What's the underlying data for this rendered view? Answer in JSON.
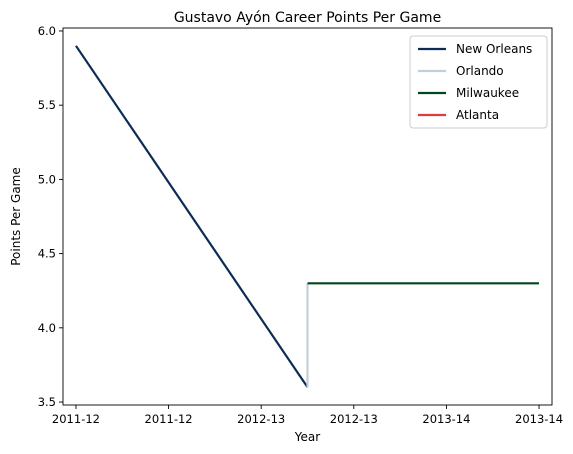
{
  "chart_data": {
    "type": "line",
    "title": "Gustavo Ayón Career Points Per Game",
    "xlabel": "Year",
    "ylabel": "Points Per Game",
    "x_tick_labels": [
      "2011-12",
      "2011-12",
      "2012-13",
      "2012-13",
      "2013-14",
      "2013-14"
    ],
    "x_tick_positions": [
      0,
      0.5,
      1,
      1.5,
      2,
      2.5
    ],
    "xlim": [
      -0.07,
      2.57
    ],
    "y_ticks": [
      3.5,
      4.0,
      4.5,
      5.0,
      5.5,
      6.0
    ],
    "y_tick_labels": [
      "3.5",
      "4.0",
      "4.5",
      "5.0",
      "5.5",
      "6.0"
    ],
    "ylim": [
      3.48,
      6.02
    ],
    "grid": false,
    "legend_position": "top-right",
    "series": [
      {
        "name": "New Orleans",
        "color": "#0C2C56",
        "x": [
          0,
          1.25
        ],
        "y": [
          5.9,
          3.6
        ]
      },
      {
        "name": "Orlando",
        "color": "#C4CED4",
        "x": [
          1.25,
          1.25
        ],
        "y": [
          3.6,
          4.3
        ]
      },
      {
        "name": "Milwaukee",
        "color": "#00471B",
        "x": [
          1.25,
          2.5
        ],
        "y": [
          4.3,
          4.3
        ]
      },
      {
        "name": "Atlanta",
        "color": "#E03A3E",
        "x": [],
        "y": []
      }
    ]
  }
}
